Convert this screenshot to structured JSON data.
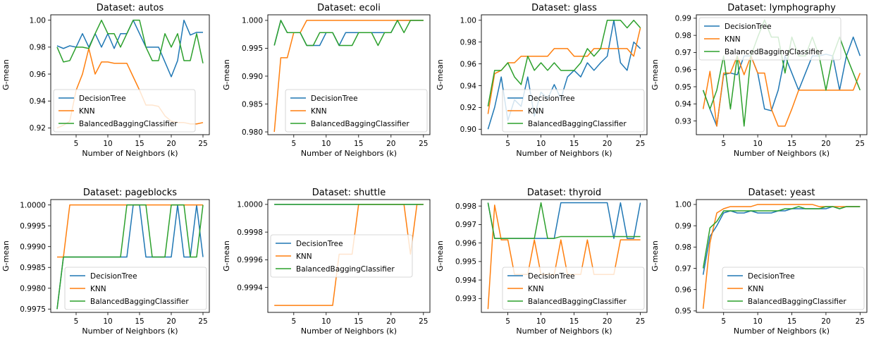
{
  "figure": {
    "series_names": [
      "DecisionTree",
      "KNN",
      "BalancedBaggingClassifier"
    ],
    "series_colors": [
      "#1f77b4",
      "#ff7f0e",
      "#2ca02c"
    ],
    "xlabel": "Number of Neighbors (k)",
    "ylabel": "G-mean",
    "x": [
      2,
      3,
      4,
      5,
      6,
      7,
      8,
      9,
      10,
      11,
      12,
      13,
      14,
      15,
      16,
      17,
      18,
      19,
      20,
      21,
      22,
      23,
      24,
      25
    ]
  },
  "chart_data": [
    {
      "type": "line",
      "title": "Dataset: autos",
      "xlim": [
        1,
        26
      ],
      "ylim": [
        0.915,
        1.004
      ],
      "xticks": [
        5,
        10,
        15,
        20,
        25
      ],
      "yticks": [
        0.92,
        0.94,
        0.96,
        0.98,
        1.0
      ],
      "ytick_labels": [
        "0.92",
        "0.94",
        "0.96",
        "0.98",
        "1.00"
      ],
      "legend_position": "lower-left",
      "series": [
        {
          "name": "DecisionTree",
          "values": [
            0.981,
            0.979,
            0.981,
            0.98,
            0.99,
            0.98,
            0.99,
            0.98,
            0.99,
            0.979,
            0.99,
            0.99,
            1.0,
            0.99,
            0.98,
            0.98,
            0.98,
            0.969,
            0.958,
            0.97,
            1.0,
            0.989,
            0.991,
            0.991
          ]
        },
        {
          "name": "KNN",
          "values": [
            0.92,
            0.922,
            0.925,
            0.948,
            0.96,
            0.979,
            0.96,
            0.969,
            0.969,
            0.968,
            0.968,
            0.968,
            0.958,
            0.948,
            0.937,
            0.937,
            0.936,
            0.929,
            0.925,
            0.924,
            0.924,
            0.923,
            0.923,
            0.924
          ]
        },
        {
          "name": "BalancedBaggingClassifier",
          "values": [
            0.98,
            0.969,
            0.97,
            0.98,
            0.98,
            0.979,
            0.99,
            1.0,
            0.99,
            0.99,
            0.98,
            0.99,
            1.0,
            1.0,
            0.98,
            0.97,
            0.97,
            0.99,
            0.98,
            0.99,
            0.97,
            0.97,
            0.99,
            0.968
          ]
        }
      ]
    },
    {
      "type": "line",
      "title": "Dataset: ecoli",
      "xlim": [
        1,
        26
      ],
      "ylim": [
        0.9795,
        1.001
      ],
      "xticks": [
        5,
        10,
        15,
        20,
        25
      ],
      "yticks": [
        0.98,
        0.985,
        0.99,
        0.995,
        1.0
      ],
      "ytick_labels": [
        "0.980",
        "0.985",
        "0.990",
        "0.995",
        "1.000"
      ],
      "legend_position": "lower-right",
      "series": [
        {
          "name": "DecisionTree",
          "values": [
            0.9955,
            1.0,
            0.9978,
            0.9978,
            0.9978,
            0.9955,
            0.9955,
            0.9955,
            0.9978,
            0.9978,
            0.9955,
            0.9978,
            0.9978,
            0.9978,
            0.9978,
            0.9978,
            0.9978,
            0.9978,
            0.9978,
            1.0,
            1.0,
            1.0,
            1.0,
            1.0
          ]
        },
        {
          "name": "KNN",
          "values": [
            0.98,
            0.9933,
            0.9933,
            0.9978,
            0.9978,
            1.0,
            1.0,
            1.0,
            1.0,
            1.0,
            1.0,
            1.0,
            1.0,
            1.0,
            1.0,
            1.0,
            1.0,
            1.0,
            1.0,
            1.0,
            1.0,
            1.0,
            1.0,
            1.0
          ]
        },
        {
          "name": "BalancedBaggingClassifier",
          "values": [
            0.9955,
            1.0,
            0.9978,
            0.9978,
            0.9978,
            0.9955,
            0.9955,
            0.9978,
            0.9978,
            0.9978,
            0.9955,
            0.9955,
            0.9955,
            0.9978,
            0.9978,
            0.9978,
            0.9955,
            0.9978,
            0.9978,
            1.0,
            0.9978,
            1.0,
            1.0,
            1.0
          ]
        }
      ]
    },
    {
      "type": "line",
      "title": "Dataset: glass",
      "xlim": [
        1,
        26
      ],
      "ylim": [
        0.895,
        1.005
      ],
      "xticks": [
        5,
        10,
        15,
        20,
        25
      ],
      "yticks": [
        0.9,
        0.92,
        0.94,
        0.96,
        0.98,
        1.0
      ],
      "ytick_labels": [
        "0.90",
        "0.92",
        "0.94",
        "0.96",
        "0.98",
        "1.00"
      ],
      "legend_position": "lower-right",
      "series": [
        {
          "name": "DecisionTree",
          "values": [
            0.9,
            0.92,
            0.948,
            0.908,
            0.927,
            0.921,
            0.948,
            0.912,
            0.934,
            0.928,
            0.941,
            0.928,
            0.948,
            0.954,
            0.948,
            0.961,
            0.954,
            0.961,
            0.967,
            1.0,
            0.961,
            0.954,
            0.98,
            0.974
          ]
        },
        {
          "name": "KNN",
          "values": [
            0.914,
            0.951,
            0.954,
            0.961,
            0.961,
            0.967,
            0.967,
            0.967,
            0.967,
            0.967,
            0.974,
            0.974,
            0.974,
            0.967,
            0.967,
            0.967,
            0.974,
            0.974,
            0.974,
            0.974,
            0.974,
            0.974,
            0.967,
            0.993
          ]
        },
        {
          "name": "BalancedBaggingClassifier",
          "values": [
            0.921,
            0.954,
            0.954,
            0.961,
            0.948,
            0.941,
            0.967,
            0.954,
            0.961,
            0.954,
            0.961,
            0.954,
            0.954,
            0.954,
            0.961,
            0.974,
            0.967,
            0.974,
            1.0,
            1.0,
            1.0,
            0.993,
            1.0,
            0.993
          ]
        }
      ]
    },
    {
      "type": "line",
      "title": "Dataset: lymphography",
      "xlim": [
        1,
        26
      ],
      "ylim": [
        0.922,
        0.992
      ],
      "xticks": [
        5,
        10,
        15,
        20,
        25
      ],
      "yticks": [
        0.93,
        0.94,
        0.95,
        0.96,
        0.97,
        0.98,
        0.99
      ],
      "ytick_labels": [
        "0.93",
        "0.94",
        "0.95",
        "0.96",
        "0.97",
        "0.98",
        "0.99"
      ],
      "legend_position": "upper-left",
      "series": [
        {
          "name": "DecisionTree",
          "values": [
            0.948,
            0.937,
            0.927,
            0.957,
            0.958,
            0.957,
            0.968,
            0.968,
            0.958,
            0.937,
            0.936,
            0.948,
            0.968,
            0.958,
            0.948,
            0.958,
            0.968,
            0.968,
            0.969,
            0.968,
            0.948,
            0.968,
            0.979,
            0.968
          ]
        },
        {
          "name": "KNN",
          "values": [
            0.937,
            0.959,
            0.927,
            0.958,
            0.958,
            0.968,
            0.957,
            0.968,
            0.958,
            0.958,
            0.937,
            0.927,
            0.927,
            0.937,
            0.948,
            0.948,
            0.948,
            0.948,
            0.948,
            0.948,
            0.948,
            0.948,
            0.948,
            0.958
          ]
        },
        {
          "name": "BalancedBaggingClassifier",
          "values": [
            0.948,
            0.937,
            0.948,
            0.968,
            0.937,
            0.968,
            0.927,
            0.968,
            0.979,
            0.989,
            0.979,
            0.979,
            0.958,
            0.979,
            0.968,
            0.968,
            0.979,
            0.968,
            0.948,
            0.968,
            0.979,
            0.968,
            0.958,
            0.948
          ]
        }
      ]
    },
    {
      "type": "line",
      "title": "Dataset: pageblocks",
      "xlim": [
        1,
        26
      ],
      "ylim": [
        0.99742,
        1.00013
      ],
      "xticks": [
        5,
        10,
        15,
        20,
        25
      ],
      "yticks": [
        0.9975,
        0.998,
        0.9985,
        0.999,
        0.9995,
        1.0
      ],
      "ytick_labels": [
        "0.9975",
        "0.9980",
        "0.9985",
        "0.9990",
        "0.9995",
        "1.0000"
      ],
      "legend_position": "lower-right",
      "series": [
        {
          "name": "DecisionTree",
          "values": [
            0.9975,
            0.99875,
            0.99875,
            0.99875,
            0.99875,
            0.99875,
            0.99875,
            0.99875,
            0.99875,
            0.99875,
            0.99875,
            0.99875,
            1.0,
            1.0,
            0.99875,
            0.99875,
            0.99875,
            0.99875,
            0.99875,
            1.0,
            0.99875,
            0.99875,
            1.0,
            0.99875
          ]
        },
        {
          "name": "KNN",
          "values": [
            0.99875,
            0.99875,
            1.0,
            1.0,
            1.0,
            1.0,
            1.0,
            1.0,
            1.0,
            1.0,
            1.0,
            1.0,
            1.0,
            1.0,
            1.0,
            1.0,
            1.0,
            1.0,
            1.0,
            1.0,
            1.0,
            1.0,
            1.0,
            1.0
          ]
        },
        {
          "name": "BalancedBaggingClassifier",
          "values": [
            0.9975,
            0.99875,
            0.99875,
            0.99875,
            0.99875,
            0.99875,
            0.99875,
            0.99875,
            0.99875,
            0.99875,
            0.99875,
            1.0,
            1.0,
            1.0,
            1.0,
            0.99875,
            0.99875,
            0.99875,
            1.0,
            1.0,
            1.0,
            0.99875,
            0.99875,
            1.0
          ]
        }
      ]
    },
    {
      "type": "line",
      "title": "Dataset: shuttle",
      "xlim": [
        1,
        26
      ],
      "ylim": [
        0.99922,
        1.000035
      ],
      "xticks": [
        5,
        10,
        15,
        20,
        25
      ],
      "yticks": [
        0.9994,
        0.9996,
        0.9998,
        1.0
      ],
      "ytick_labels": [
        "0.9994",
        "0.9996",
        "0.9998",
        "1.0000"
      ],
      "legend_position": "center-left",
      "series": [
        {
          "name": "DecisionTree",
          "values": [
            1.0,
            1.0,
            1.0,
            1.0,
            1.0,
            1.0,
            1.0,
            1.0,
            1.0,
            1.0,
            1.0,
            1.0,
            1.0,
            1.0,
            1.0,
            1.0,
            1.0,
            1.0,
            1.0,
            1.0,
            1.0,
            1.0,
            1.0,
            1.0
          ]
        },
        {
          "name": "KNN",
          "values": [
            0.99927,
            0.99927,
            0.99927,
            0.99927,
            0.99927,
            0.99927,
            0.99927,
            0.99927,
            0.99927,
            0.99927,
            0.99964,
            0.99964,
            0.99964,
            1.0,
            1.0,
            1.0,
            1.0,
            1.0,
            1.0,
            1.0,
            1.0,
            0.99964,
            1.0,
            1.0
          ]
        },
        {
          "name": "BalancedBaggingClassifier",
          "values": [
            1.0,
            1.0,
            1.0,
            1.0,
            1.0,
            1.0,
            1.0,
            1.0,
            1.0,
            1.0,
            1.0,
            1.0,
            1.0,
            1.0,
            1.0,
            1.0,
            1.0,
            1.0,
            1.0,
            1.0,
            1.0,
            1.0,
            1.0,
            1.0
          ]
        }
      ]
    },
    {
      "type": "line",
      "title": "Dataset: thyroid",
      "xlim": [
        1,
        26
      ],
      "ylim": [
        0.99225,
        0.99835
      ],
      "xticks": [
        5,
        10,
        15,
        20,
        25
      ],
      "yticks": [
        0.993,
        0.994,
        0.995,
        0.996,
        0.997,
        0.998
      ],
      "ytick_labels": [
        "0.993",
        "0.994",
        "0.995",
        "0.996",
        "0.997",
        "0.998"
      ],
      "legend_position": "lower-right",
      "series": [
        {
          "name": "DecisionTree",
          "values": [
            0.99818,
            0.99625,
            0.99625,
            0.99625,
            0.99625,
            0.99625,
            0.99625,
            0.99625,
            0.99625,
            0.99625,
            0.99625,
            0.99818,
            0.99818,
            0.99818,
            0.99818,
            0.99818,
            0.99818,
            0.99818,
            0.99818,
            0.99625,
            0.99818,
            0.99625,
            0.99625,
            0.99818
          ]
        },
        {
          "name": "KNN",
          "values": [
            0.99243,
            0.99805,
            0.99617,
            0.99617,
            0.9943,
            0.9943,
            0.9943,
            0.99617,
            0.9943,
            0.9943,
            0.9943,
            0.99617,
            0.9943,
            0.9943,
            0.9943,
            0.99617,
            0.9943,
            0.9943,
            0.9943,
            0.9943,
            0.99617,
            0.99617,
            0.99617,
            0.99617
          ]
        },
        {
          "name": "BalancedBaggingClassifier",
          "values": [
            0.99818,
            0.99625,
            0.99625,
            0.99625,
            0.99625,
            0.99625,
            0.99625,
            0.99625,
            0.99818,
            0.99625,
            0.99625,
            0.99635,
            0.99635,
            0.99635,
            0.99635,
            0.99635,
            0.99635,
            0.99635,
            0.99635,
            0.99635,
            0.99635,
            0.99635,
            0.99635,
            0.99635
          ]
        }
      ]
    },
    {
      "type": "line",
      "title": "Dataset: yeast",
      "xlim": [
        1,
        26
      ],
      "ylim": [
        0.9493,
        1.0023
      ],
      "xticks": [
        5,
        10,
        15,
        20,
        25
      ],
      "yticks": [
        0.95,
        0.96,
        0.97,
        0.98,
        0.99,
        1.0
      ],
      "ytick_labels": [
        "0.95",
        "0.96",
        "0.97",
        "0.98",
        "0.99",
        "1.00"
      ],
      "legend_position": "lower-right",
      "series": [
        {
          "name": "DecisionTree",
          "values": [
            0.967,
            0.985,
            0.99,
            0.996,
            0.997,
            0.996,
            0.996,
            0.997,
            0.996,
            0.996,
            0.996,
            0.997,
            0.997,
            0.998,
            0.998,
            0.998,
            0.998,
            0.998,
            0.998,
            0.999,
            0.998,
            0.999,
            0.999,
            0.999
          ]
        },
        {
          "name": "KNN",
          "values": [
            0.951,
            0.982,
            0.996,
            0.998,
            0.999,
            0.999,
            0.999,
            0.999,
            1.0,
            1.0,
            1.0,
            1.0,
            1.0,
            1.0,
            1.0,
            1.0,
            1.0,
            0.999,
            0.999,
            0.999,
            0.999,
            0.999,
            0.999,
            0.999
          ]
        },
        {
          "name": "BalancedBaggingClassifier",
          "values": [
            0.97,
            0.989,
            0.992,
            0.997,
            0.997,
            0.997,
            0.997,
            0.997,
            0.997,
            0.997,
            0.997,
            0.997,
            0.998,
            0.998,
            0.999,
            0.998,
            0.998,
            0.998,
            0.999,
            0.999,
            0.998,
            0.999,
            0.999,
            0.999
          ]
        }
      ]
    }
  ]
}
